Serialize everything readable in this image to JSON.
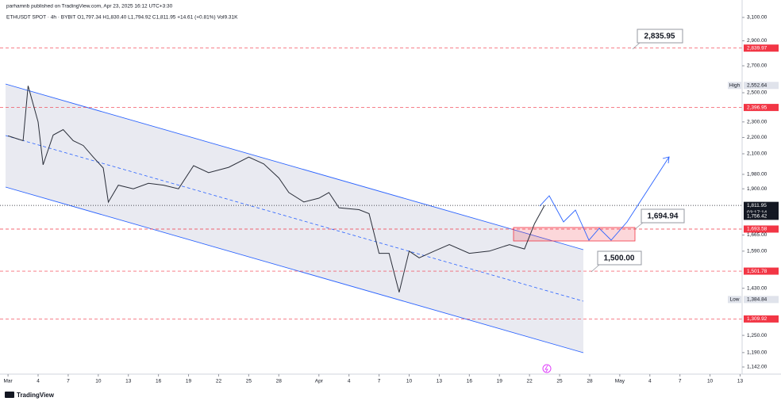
{
  "header": {
    "publisher": "parhamnb published on TradingView.com, Apr 23, 2025 16:12 UTC+3:30",
    "symbol_line": "ETHUSDT SPOT · 4h · BYBIT   O1,797.34  H1,830.40  L1,794.92  C1,811.95  +14.61 (+0.81%)   Vol9.31K"
  },
  "chart_data": {
    "type": "line",
    "log_scale": true,
    "color": "#2a2e39",
    "x": [
      0,
      1.5,
      2,
      3,
      3.5,
      4.5,
      5.5,
      6.5,
      7.5,
      8.5,
      9.5,
      10,
      11,
      12.5,
      14,
      15.5,
      17,
      18.5,
      20,
      22,
      24,
      25.5,
      27,
      28,
      29.5,
      31,
      32,
      33,
      35,
      36,
      37,
      38,
      39,
      40,
      41,
      42.5,
      44,
      46,
      48,
      50,
      51.5,
      52.5,
      53.5
    ],
    "values": [
      2210,
      2180,
      2550,
      2300,
      2035,
      2215,
      2250,
      2180,
      2150,
      2080,
      2016,
      1829,
      1920,
      1900,
      1930,
      1920,
      1900,
      2030,
      1990,
      2020,
      2080,
      2040,
      1960,
      1880,
      1830,
      1850,
      1880,
      1800,
      1790,
      1770,
      1580,
      1580,
      1414,
      1590,
      1560,
      1590,
      1620,
      1580,
      1590,
      1620,
      1600,
      1720,
      1811.95
    ],
    "xlim": [
      -0.8,
      73.2
    ],
    "ylim": [
      1142,
      3100
    ],
    "yticks": [
      {
        "value": 3100,
        "label": "3,100.00"
      },
      {
        "value": 2900,
        "label": "2,900.00"
      },
      {
        "value": 2700,
        "label": "2,700.00"
      },
      {
        "value": 2500,
        "label": "2,500.00"
      },
      {
        "value": 2300,
        "label": "2,300.00"
      },
      {
        "value": 2200,
        "label": "2,200.00"
      },
      {
        "value": 2100,
        "label": "2,100.00"
      },
      {
        "value": 1980,
        "label": "1,980.00"
      },
      {
        "value": 1900,
        "label": "1,900.00"
      },
      {
        "value": 1665,
        "label": "1,665.00"
      },
      {
        "value": 1590,
        "label": "1,590.00"
      },
      {
        "value": 1430,
        "label": "1,430.00"
      },
      {
        "value": 1250,
        "label": "1,250.00"
      },
      {
        "value": 1190,
        "label": "1,190.00"
      },
      {
        "value": 1142,
        "label": "1,142.00"
      }
    ],
    "xticks": [
      {
        "value": 0,
        "label": "Mar"
      },
      {
        "value": 3,
        "label": "4"
      },
      {
        "value": 6,
        "label": "7"
      },
      {
        "value": 9,
        "label": "10"
      },
      {
        "value": 12,
        "label": "13"
      },
      {
        "value": 15,
        "label": "16"
      },
      {
        "value": 18,
        "label": "19"
      },
      {
        "value": 21,
        "label": "22"
      },
      {
        "value": 24,
        "label": "25"
      },
      {
        "value": 27,
        "label": "28"
      },
      {
        "value": 31,
        "label": "Apr"
      },
      {
        "value": 34,
        "label": "4"
      },
      {
        "value": 37,
        "label": "7"
      },
      {
        "value": 40,
        "label": "10"
      },
      {
        "value": 43,
        "label": "13"
      },
      {
        "value": 46,
        "label": "16"
      },
      {
        "value": 49,
        "label": "19"
      },
      {
        "value": 52,
        "label": "22"
      },
      {
        "value": 55,
        "label": "25"
      },
      {
        "value": 58,
        "label": "28"
      },
      {
        "value": 61,
        "label": "May"
      },
      {
        "value": 64,
        "label": "4"
      },
      {
        "value": 67,
        "label": "7"
      },
      {
        "value": 70,
        "label": "10"
      },
      {
        "value": 73,
        "label": "13"
      }
    ],
    "levels": [
      {
        "value": 2839.97,
        "label": "2,839.97",
        "color": "#f23645",
        "line": "dashed"
      },
      {
        "value": 2552.64,
        "label": "2,552.64",
        "color": "#e0e3eb",
        "line": "none",
        "tag": "High"
      },
      {
        "value": 2396.95,
        "label": "2,396.95",
        "color": "#f23645",
        "line": "dashed"
      },
      {
        "value": 1811.95,
        "label": "1,811.95",
        "color": "#131722",
        "line": "dotted",
        "tag": "03:17:14"
      },
      {
        "value": 1756.42,
        "label": "1,756.42",
        "color": "#131722",
        "line": "none"
      },
      {
        "value": 1693.58,
        "label": "1,693.58",
        "color": "#f23645",
        "line": "dashed"
      },
      {
        "value": 1501.78,
        "label": "1,501.78",
        "color": "#f23645",
        "line": "dashed"
      },
      {
        "value": 1384.84,
        "label": "1,384.84",
        "color": "#e0e3eb",
        "line": "none",
        "tag": "Low"
      },
      {
        "value": 1309.92,
        "label": "1,309.92",
        "color": "#f23645",
        "line": "dashed"
      }
    ],
    "annotations": [
      "2,835.95",
      "1,694.94",
      "1,500.00"
    ]
  },
  "footer": {
    "brand": "TradingView"
  }
}
